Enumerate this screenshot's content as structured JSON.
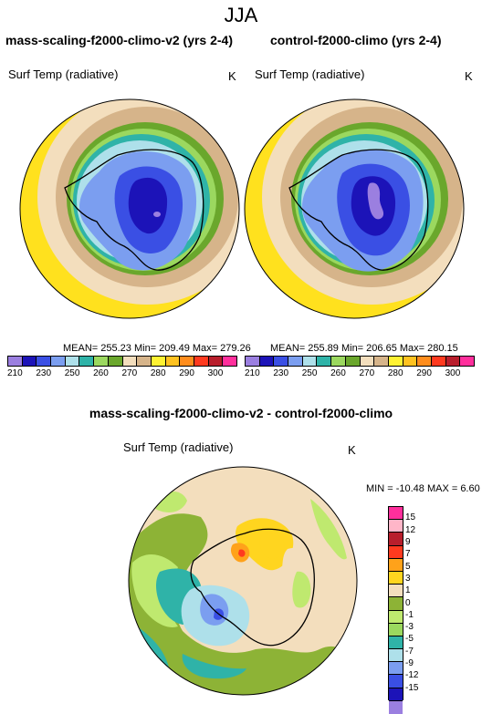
{
  "season": "JJA",
  "left_panel": {
    "title": "mass-scaling-f2000-climo-v2 (yrs 2-4)",
    "variable": "Surf Temp (radiative)",
    "unit": "K",
    "stats": "MEAN= 255.23  Min= 209.49  Max= 279.26"
  },
  "right_panel": {
    "title": "control-f2000-climo (yrs 2-4)",
    "variable": "Surf Temp (radiative)",
    "unit": "K",
    "stats": "MEAN= 255.89  Min= 206.65  Max= 280.15"
  },
  "diff_panel": {
    "title": "mass-scaling-f2000-climo-v2 - control-f2000-climo",
    "variable": "Surf Temp (radiative)",
    "unit": "K",
    "stats": "MIN = -10.48 MAX =   6.60"
  },
  "abs_colorbar": {
    "colors": [
      "#9b7fe0",
      "#1c13b8",
      "#3a4fe4",
      "#7b9ef0",
      "#aee0ea",
      "#2fb3a8",
      "#9bd85f",
      "#6aa72c",
      "#f3debd",
      "#d6b48a",
      "#fff232",
      "#ffc220",
      "#ff8d1d",
      "#ff3a1f",
      "#b81e2c",
      "#ff2f9c"
    ],
    "labels": [
      "210",
      "",
      "230",
      "",
      "250",
      "",
      "260",
      "",
      "270",
      "",
      "280",
      "",
      "290",
      "",
      "300",
      ""
    ]
  },
  "diff_colorbar": {
    "colors": [
      "#ff2f9c",
      "#ffb6c8",
      "#b81e2c",
      "#ff3a1f",
      "#ffa21a",
      "#ffd51f",
      "#f3debd",
      "#8db336",
      "#bfe96f",
      "#9bd85f",
      "#2fb3a8",
      "#aee0ea",
      "#7b9ef0",
      "#3a4fe4",
      "#1c13b8",
      "#9b7fe0"
    ],
    "labels": [
      "15",
      "12",
      "9",
      "7",
      "5",
      "3",
      "1",
      "0",
      "-1",
      "-3",
      "-5",
      "-7",
      "-9",
      "-12",
      "-15"
    ]
  }
}
